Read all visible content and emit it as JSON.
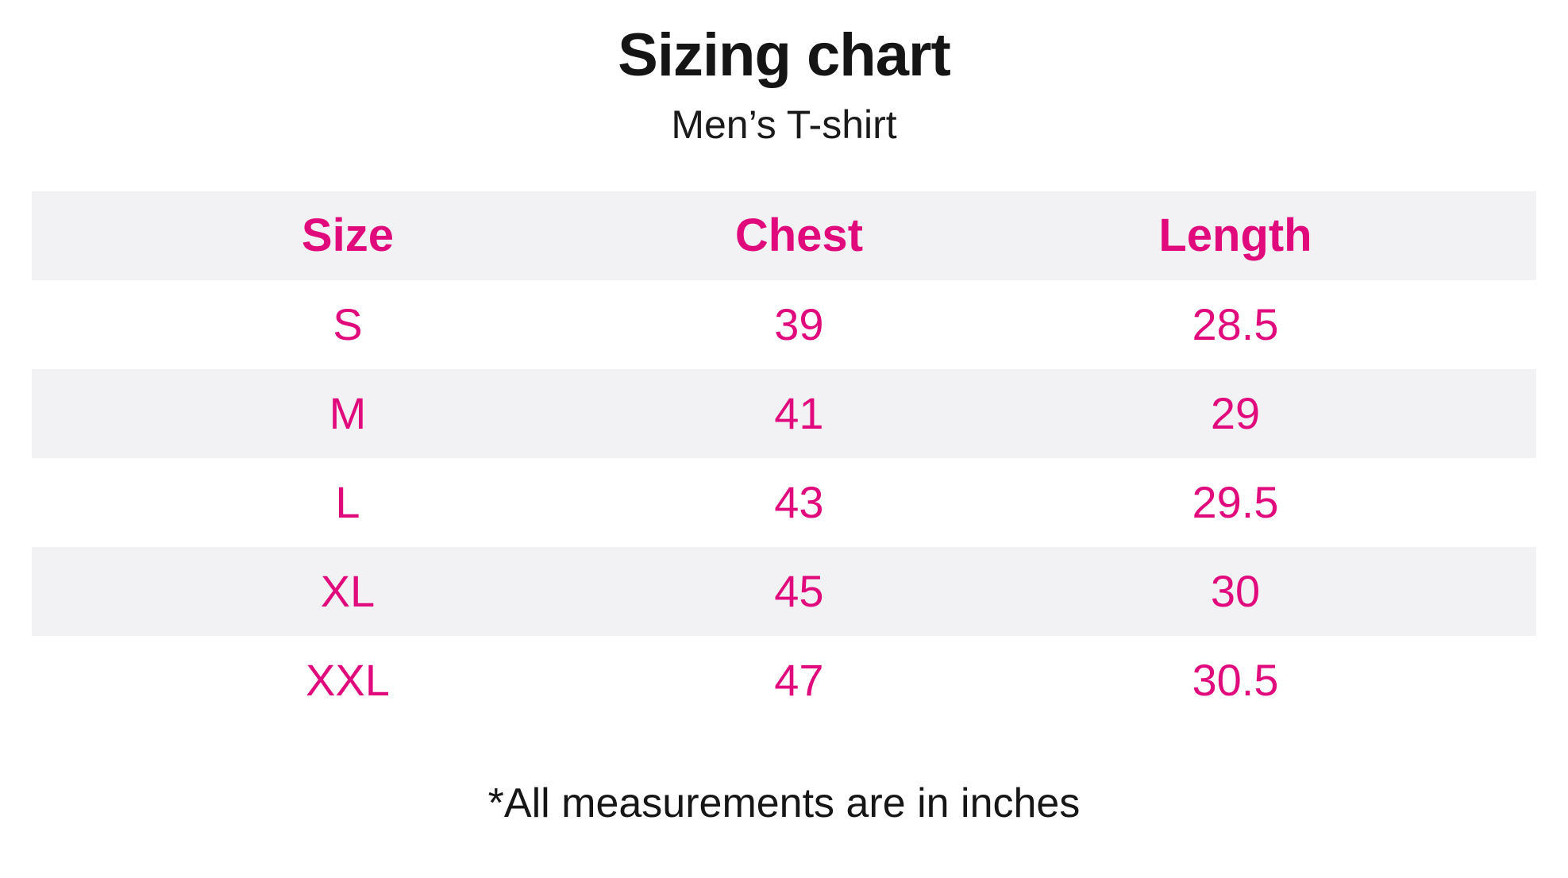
{
  "page": {
    "title": "Sizing chart",
    "subtitle": "Men’s T-shirt",
    "footnote": "*All measurements are in inches"
  },
  "colors": {
    "accent_pink": "#e10a7d",
    "row_stripe_gray": "#f2f2f4",
    "text_black": "#151515",
    "background": "#ffffff"
  },
  "chart_data": {
    "type": "table",
    "title": "Sizing chart",
    "subtitle": "Men’s T-shirt",
    "columns": [
      "Size",
      "Chest",
      "Length"
    ],
    "rows": [
      [
        "S",
        "39",
        "28.5"
      ],
      [
        "M",
        "41",
        "29"
      ],
      [
        "L",
        "43",
        "29.5"
      ],
      [
        "XL",
        "45",
        "30"
      ],
      [
        "XXL",
        "47",
        "30.5"
      ]
    ],
    "units": "inches",
    "footnote": "*All measurements are in inches",
    "layout": {
      "striped_rows": [
        "header",
        "M",
        "XL"
      ],
      "column_alignment": "center"
    }
  }
}
